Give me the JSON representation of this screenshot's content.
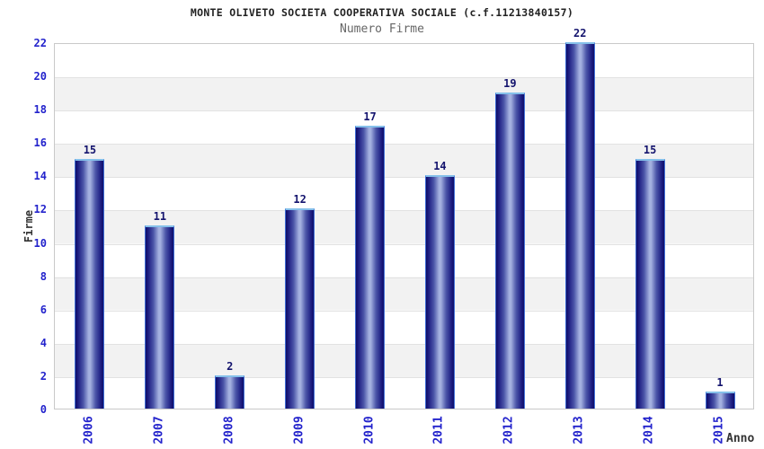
{
  "header": {
    "title": "MONTE OLIVETO SOCIETA COOPERATIVA SOCIALE (c.f.11213840157)",
    "subtitle": "Numero Firme"
  },
  "colors": {
    "tick_blue": "#2323cc",
    "value_navy": "#14146e",
    "bar_dark": "#0f0f68",
    "bar_light": "#a4b1e0",
    "bar_top_border": "#85c0ea",
    "band_gray": "#f2f2f2",
    "plot_border": "#c9c9c9",
    "title_color": "#222222",
    "subtitle_color": "#666666"
  },
  "chart_data": {
    "type": "bar",
    "title": "MONTE OLIVETO SOCIETA COOPERATIVA SOCIALE (c.f.11213840157)",
    "subtitle": "Numero Firme",
    "categories": [
      "2006",
      "2007",
      "2008",
      "2009",
      "2010",
      "2011",
      "2012",
      "2013",
      "2014",
      "2015"
    ],
    "values": [
      15,
      11,
      2,
      12,
      17,
      14,
      19,
      22,
      15,
      1
    ],
    "xlabel": "Anno",
    "ylabel": "Firme",
    "ylim": [
      0,
      22
    ],
    "ytick_step": 2,
    "grid": "horizontal-bands-alternating",
    "legend": "none",
    "bar_value_labels": true
  }
}
